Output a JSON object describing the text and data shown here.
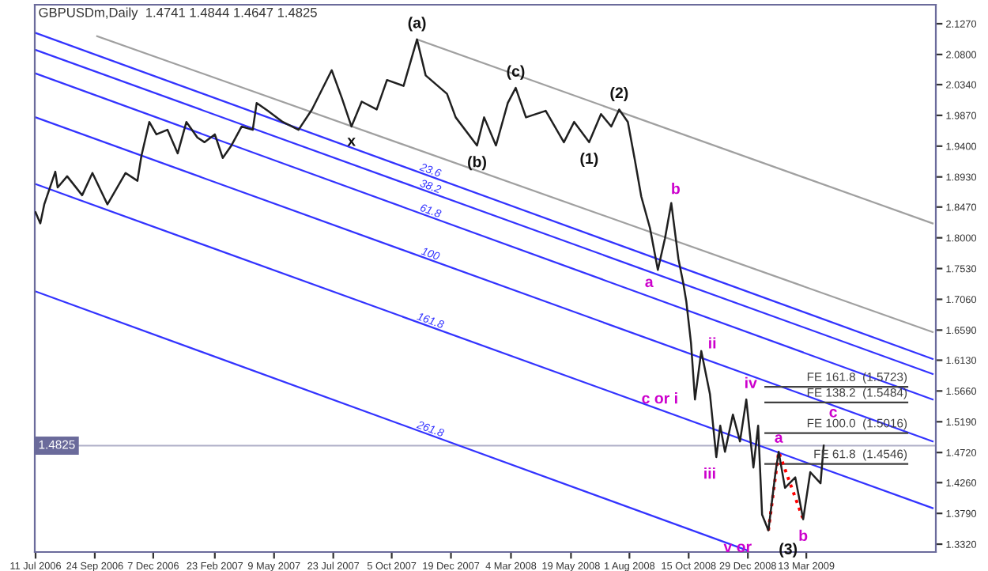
{
  "chart_data": {
    "type": "line",
    "title": "GBPUSDm,Daily  1.4741 1.4844 1.4647 1.4825",
    "xlim": [
      "2006-07-10",
      "2009-08-24"
    ],
    "ylim": [
      1.32,
      2.156
    ],
    "xticks": [
      {
        "value": "2006-07-11",
        "label": "11 Jul 2006"
      },
      {
        "value": "2006-09-24",
        "label": "24 Sep 2006"
      },
      {
        "value": "2006-12-07",
        "label": "7 Dec 2006"
      },
      {
        "value": "2007-02-23",
        "label": "23 Feb 2007"
      },
      {
        "value": "2007-05-09",
        "label": "9 May 2007"
      },
      {
        "value": "2007-07-23",
        "label": "23 Jul 2007"
      },
      {
        "value": "2007-10-05",
        "label": "5 Oct 2007"
      },
      {
        "value": "2007-12-19",
        "label": "19 Dec 2007"
      },
      {
        "value": "2008-03-04",
        "label": "4 Mar 2008"
      },
      {
        "value": "2008-05-19",
        "label": "19 May 2008"
      },
      {
        "value": "2008-08-01",
        "label": "1 Aug 2008"
      },
      {
        "value": "2008-10-15",
        "label": "15 Oct 2008"
      },
      {
        "value": "2008-12-29",
        "label": "29 Dec 2008"
      },
      {
        "value": "2009-03-13",
        "label": "13 Mar 2009"
      }
    ],
    "yticks": [
      {
        "value": 2.127,
        "label": "2.1270"
      },
      {
        "value": 2.08,
        "label": "2.0800"
      },
      {
        "value": 2.034,
        "label": "2.0340"
      },
      {
        "value": 1.987,
        "label": "1.9870"
      },
      {
        "value": 1.94,
        "label": "1.9400"
      },
      {
        "value": 1.893,
        "label": "1.8930"
      },
      {
        "value": 1.847,
        "label": "1.8470"
      },
      {
        "value": 1.8,
        "label": "1.8000"
      },
      {
        "value": 1.753,
        "label": "1.7530"
      },
      {
        "value": 1.706,
        "label": "1.7060"
      },
      {
        "value": 1.659,
        "label": "1.6590"
      },
      {
        "value": 1.613,
        "label": "1.6130"
      },
      {
        "value": 1.566,
        "label": "1.5660"
      },
      {
        "value": 1.519,
        "label": "1.5190"
      },
      {
        "value": 1.472,
        "label": "1.4720"
      },
      {
        "value": 1.426,
        "label": "1.4260"
      },
      {
        "value": 1.379,
        "label": "1.3790"
      },
      {
        "value": 1.332,
        "label": "1.3320"
      }
    ],
    "series": [
      {
        "color": "#a0a0a0",
        "x": [
          "2006-09-27",
          "2009-08-20"
        ],
        "values": [
          2.108,
          1.656
        ]
      },
      {
        "color": "#a0a0a0",
        "x": [
          "2007-11-06",
          "2009-08-20"
        ],
        "values": [
          2.103,
          1.822
        ]
      },
      {
        "name": "23.6",
        "color": "#3333ff",
        "x": [
          "2006-07-11",
          "2009-08-20"
        ],
        "values": [
          2.113,
          1.615
        ]
      },
      {
        "name": "38.2",
        "color": "#3333ff",
        "x": [
          "2006-07-11",
          "2009-08-20"
        ],
        "values": [
          2.087,
          1.592
        ]
      },
      {
        "name": "61.8",
        "color": "#3333ff",
        "x": [
          "2006-07-11",
          "2009-08-20"
        ],
        "values": [
          2.051,
          1.553
        ]
      },
      {
        "name": "100",
        "color": "#3333ff",
        "x": [
          "2006-07-11",
          "2009-08-20"
        ],
        "values": [
          1.984,
          1.489
        ]
      },
      {
        "name": "161.8",
        "color": "#3333ff",
        "x": [
          "2006-07-11",
          "2009-08-20"
        ],
        "values": [
          1.882,
          1.387
        ]
      },
      {
        "name": "261.8",
        "color": "#3333ff",
        "x": [
          "2006-07-11",
          "2008-12-27"
        ],
        "values": [
          1.718,
          1.323
        ]
      },
      {
        "name": "FE 161.8  (1.5723)",
        "color": "#404040",
        "x": [
          "2009-01-20",
          "2009-07-19"
        ],
        "values": [
          1.5723,
          1.5723
        ]
      },
      {
        "name": "FE 138.2  (1.5484)",
        "color": "#404040",
        "x": [
          "2009-01-20",
          "2009-07-19"
        ],
        "values": [
          1.5484,
          1.5484
        ]
      },
      {
        "name": "FE 100.0  (1.5016)",
        "color": "#404040",
        "x": [
          "2009-01-20",
          "2009-07-19"
        ],
        "values": [
          1.5016,
          1.5016
        ]
      },
      {
        "name": "FE 61.8  (1.4546)",
        "color": "#404040",
        "x": [
          "2009-01-20",
          "2009-07-19"
        ],
        "values": [
          1.4546,
          1.4546
        ]
      },
      {
        "color": "#202020",
        "x": [
          "2006-07-11",
          "2006-07-17",
          "2006-07-22",
          "2006-08-05",
          "2006-08-08",
          "2006-08-20",
          "2006-09-08",
          "2006-09-21",
          "2006-10-10",
          "2006-11-02",
          "2006-11-17",
          "2006-11-22",
          "2006-12-02",
          "2006-12-11",
          "2006-12-25",
          "2007-01-07",
          "2007-01-18",
          "2007-02-01",
          "2007-02-10",
          "2007-02-23",
          "2007-03-05",
          "2007-03-16",
          "2007-03-29",
          "2007-04-12",
          "2007-04-17",
          "2007-05-01",
          "2007-05-20",
          "2007-06-09",
          "2007-06-26",
          "2007-07-21",
          "2007-08-03",
          "2007-08-15",
          "2007-08-28",
          "2007-09-16",
          "2007-09-29",
          "2007-10-20",
          "2007-11-06",
          "2007-11-17",
          "2007-12-14",
          "2007-12-25",
          "2008-01-21",
          "2008-01-30",
          "2008-02-14",
          "2008-02-29",
          "2008-03-10",
          "2008-03-23",
          "2008-04-17",
          "2008-05-10",
          "2008-05-23",
          "2008-06-11",
          "2008-06-26",
          "2008-07-09",
          "2008-07-19",
          "2008-07-30",
          "2008-08-08",
          "2008-08-16",
          "2008-08-27",
          "2008-09-06",
          "2008-09-15",
          "2008-09-23",
          "2008-10-02",
          "2008-10-08",
          "2008-10-12",
          "2008-10-18",
          "2008-10-23",
          "2008-10-31",
          "2008-11-11",
          "2008-11-19",
          "2008-11-24",
          "2008-11-30",
          "2008-12-10",
          "2008-12-19",
          "2008-12-27",
          "2009-01-05",
          "2009-01-11",
          "2009-01-16",
          "2009-01-24",
          "2009-02-02",
          "2009-02-06",
          "2009-02-14",
          "2009-02-27",
          "2009-03-09",
          "2009-03-18",
          "2009-03-31",
          "2009-04-04"
        ],
        "values": [
          1.839,
          1.822,
          1.851,
          1.901,
          1.877,
          1.894,
          1.865,
          1.899,
          1.851,
          1.899,
          1.887,
          1.925,
          1.977,
          1.958,
          1.965,
          1.929,
          1.977,
          1.953,
          1.946,
          1.958,
          1.922,
          1.941,
          1.97,
          1.965,
          2.006,
          1.994,
          1.977,
          1.965,
          1.996,
          2.056,
          2.013,
          1.97,
          2.008,
          1.996,
          2.041,
          2.032,
          2.103,
          2.048,
          2.02,
          1.984,
          1.941,
          1.984,
          1.941,
          2.006,
          2.029,
          1.984,
          1.994,
          1.946,
          1.977,
          1.946,
          1.989,
          1.97,
          1.996,
          1.977,
          1.918,
          1.863,
          1.815,
          1.751,
          1.799,
          1.853,
          1.768,
          1.732,
          1.703,
          1.639,
          1.553,
          1.627,
          1.561,
          1.465,
          1.513,
          1.473,
          1.53,
          1.489,
          1.553,
          1.449,
          1.513,
          1.377,
          1.353,
          1.442,
          1.473,
          1.418,
          1.434,
          1.37,
          1.442,
          1.425,
          1.4825
        ]
      },
      {
        "color": "#ff0000",
        "line_style": "dotted",
        "x": [
          "2009-01-24",
          "2009-02-06",
          "2009-03-09"
        ],
        "values": [
          1.353,
          1.473,
          1.37
        ]
      }
    ],
    "ref_lines": [
      {
        "axis": "y",
        "value": 1.4825,
        "label": "1.4825",
        "color": "#b0b0c8"
      }
    ],
    "annotations": [
      {
        "text": "x",
        "x": "2007-08-15",
        "y": 1.97
      },
      {
        "text": "(a)",
        "x": "2007-11-06",
        "y": 2.103
      },
      {
        "text": "(b)",
        "x": "2008-01-21",
        "y": 1.941
      },
      {
        "text": "(c)",
        "x": "2008-03-10",
        "y": 2.029
      },
      {
        "text": "(1)",
        "x": "2008-06-11",
        "y": 1.946
      },
      {
        "text": "(2)",
        "x": "2008-07-19",
        "y": 1.996
      },
      {
        "text": "(3)",
        "x": "2009-01-24",
        "y": 1.353
      },
      {
        "text": "a",
        "x": "2008-09-06",
        "y": 1.751
      },
      {
        "text": "b",
        "x": "2008-09-23",
        "y": 1.853
      },
      {
        "text": "c or i",
        "x": "2008-10-23",
        "y": 1.553
      },
      {
        "text": "ii",
        "x": "2008-10-31",
        "y": 1.627
      },
      {
        "text": "iii",
        "x": "2008-11-19",
        "y": 1.465
      },
      {
        "text": "iv",
        "x": "2008-12-27",
        "y": 1.553
      },
      {
        "text": "v or",
        "x": "2009-01-24",
        "y": 1.353
      },
      {
        "text": "a",
        "x": "2009-02-06",
        "y": 1.473
      },
      {
        "text": "b",
        "x": "2009-03-09",
        "y": 1.37
      },
      {
        "text": "c",
        "x": "2009-04-16",
        "y": 1.532
      }
    ]
  }
}
